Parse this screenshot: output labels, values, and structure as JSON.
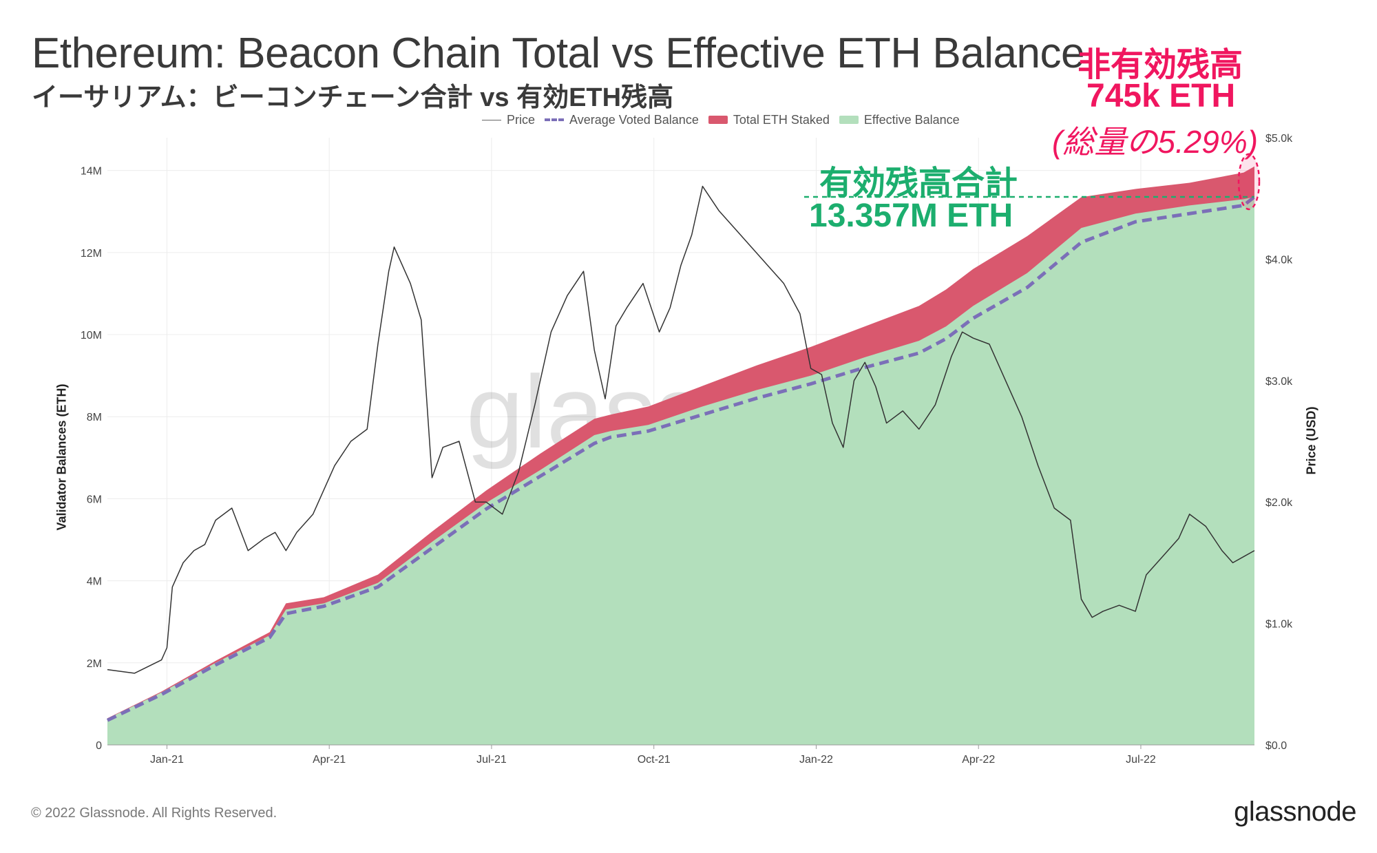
{
  "title": "Ethereum: Beacon Chain Total vs Effective ETH Balance",
  "subtitle": "イーサリアム：ビーコンチェーン合計 vs 有効ETH残高",
  "legend": {
    "price": "Price",
    "average_voted": "Average Voted Balance",
    "total_staked": "Total ETH Staked",
    "effective": "Effective Balance"
  },
  "annotations": {
    "ineffective_label": "非有効残高",
    "ineffective_amount": "745k ETH",
    "ineffective_share": "(総量の5.29%)",
    "effective_label": "有効残高合計",
    "effective_amount": "13.357M ETH"
  },
  "watermark": "glassnode",
  "footer": "© 2022 Glassnode. All Rights Reserved.",
  "logo": "glassnode",
  "colors": {
    "total": "#d9586e",
    "effective": "#b3dfbc",
    "average": "#7b6fb8",
    "price": "#333333",
    "annotation_red": "#f0165f",
    "annotation_green": "#1cae6e"
  },
  "chart_data": {
    "type": "area",
    "ylabel_left": "Validator Balances (ETH)",
    "ylabel_right": "Price (USD)",
    "left_ticks": [
      "0",
      "2M",
      "4M",
      "6M",
      "8M",
      "10M",
      "12M",
      "14M"
    ],
    "right_ticks": [
      "$0.0",
      "$1.0k",
      "$2.0k",
      "$3.0k",
      "$4.0k",
      "$5.0k"
    ],
    "x_ticks": [
      "Jan-21",
      "Apr-21",
      "Jul-21",
      "Oct-21",
      "Jan-22",
      "Apr-22",
      "Jul-22"
    ],
    "x_tick_positions": [
      1.1,
      4.1,
      7.1,
      10.1,
      13.1,
      16.1,
      19.1
    ],
    "x_range": [
      0,
      21.2
    ],
    "ylim_left": [
      0,
      14800000
    ],
    "ylim_right": [
      0,
      5000
    ],
    "series": [
      {
        "name": "Total ETH Staked",
        "x": [
          0,
          1,
          2,
          3,
          3.3,
          4,
          5,
          6,
          7,
          8,
          9,
          9.3,
          10,
          11,
          12,
          13,
          14,
          15,
          15.5,
          16,
          17,
          18,
          19,
          20,
          21,
          21.2
        ],
        "values": [
          650000,
          1300000,
          2050000,
          2750000,
          3450000,
          3600000,
          4150000,
          5200000,
          6200000,
          7100000,
          7950000,
          8050000,
          8250000,
          8750000,
          9250000,
          9700000,
          10200000,
          10700000,
          11100000,
          11600000,
          12400000,
          13350000,
          13550000,
          13700000,
          13950000,
          14100000
        ]
      },
      {
        "name": "Effective Balance",
        "x": [
          0,
          1,
          2,
          3,
          3.3,
          4,
          5,
          6,
          7,
          8,
          9,
          9.3,
          10,
          11,
          12,
          13,
          14,
          15,
          15.5,
          16,
          17,
          18,
          19,
          20,
          21,
          21.2
        ],
        "values": [
          640000,
          1280000,
          2000000,
          2670000,
          3300000,
          3450000,
          3950000,
          4950000,
          5900000,
          6700000,
          7550000,
          7650000,
          7800000,
          8250000,
          8650000,
          9000000,
          9450000,
          9850000,
          10200000,
          10700000,
          11500000,
          12600000,
          12950000,
          13150000,
          13300000,
          13357000
        ]
      },
      {
        "name": "Average Voted Balance",
        "x": [
          0,
          1,
          2,
          3,
          3.3,
          4,
          5,
          6,
          7,
          8,
          9,
          9.3,
          10,
          11,
          12,
          13,
          14,
          15,
          15.5,
          16,
          17,
          18,
          19,
          20,
          21,
          21.2
        ],
        "values": [
          600000,
          1230000,
          1950000,
          2620000,
          3200000,
          3380000,
          3850000,
          4800000,
          5750000,
          6550000,
          7350000,
          7500000,
          7650000,
          8050000,
          8450000,
          8800000,
          9200000,
          9550000,
          9900000,
          10400000,
          11150000,
          12250000,
          12750000,
          12950000,
          13150000,
          13357000
        ]
      },
      {
        "name": "Price",
        "x": [
          0,
          0.5,
          1,
          1.1,
          1.2,
          1.4,
          1.6,
          1.8,
          2,
          2.3,
          2.6,
          2.9,
          3.1,
          3.3,
          3.5,
          3.8,
          4,
          4.2,
          4.5,
          4.8,
          5,
          5.2,
          5.3,
          5.4,
          5.6,
          5.8,
          6,
          6.2,
          6.5,
          6.8,
          7,
          7.3,
          7.6,
          7.9,
          8.2,
          8.5,
          8.8,
          9,
          9.2,
          9.4,
          9.6,
          9.9,
          10.2,
          10.4,
          10.6,
          10.8,
          11,
          11.3,
          11.6,
          11.9,
          12.2,
          12.5,
          12.8,
          13,
          13.2,
          13.4,
          13.6,
          13.8,
          14,
          14.2,
          14.4,
          14.7,
          15,
          15.3,
          15.6,
          15.8,
          16,
          16.3,
          16.6,
          16.9,
          17.2,
          17.5,
          17.8,
          18,
          18.2,
          18.4,
          18.7,
          19,
          19.2,
          19.5,
          19.8,
          20,
          20.3,
          20.6,
          20.8,
          21,
          21.2
        ],
        "values": [
          620,
          590,
          700,
          800,
          1300,
          1500,
          1600,
          1650,
          1850,
          1950,
          1600,
          1700,
          1750,
          1600,
          1750,
          1900,
          2100,
          2300,
          2500,
          2600,
          3300,
          3900,
          4100,
          4000,
          3800,
          3500,
          2200,
          2450,
          2500,
          2000,
          2000,
          1900,
          2250,
          2800,
          3400,
          3700,
          3900,
          3250,
          2850,
          3450,
          3600,
          3800,
          3400,
          3600,
          3950,
          4200,
          4600,
          4400,
          4250,
          4100,
          3950,
          3800,
          3550,
          3100,
          3050,
          2650,
          2450,
          3000,
          3150,
          2950,
          2650,
          2750,
          2600,
          2800,
          3200,
          3400,
          3350,
          3300,
          3000,
          2700,
          2300,
          1950,
          1850,
          1200,
          1050,
          1100,
          1150,
          1100,
          1400,
          1550,
          1700,
          1900,
          1800,
          1600,
          1500,
          1550,
          1600
        ]
      }
    ]
  }
}
